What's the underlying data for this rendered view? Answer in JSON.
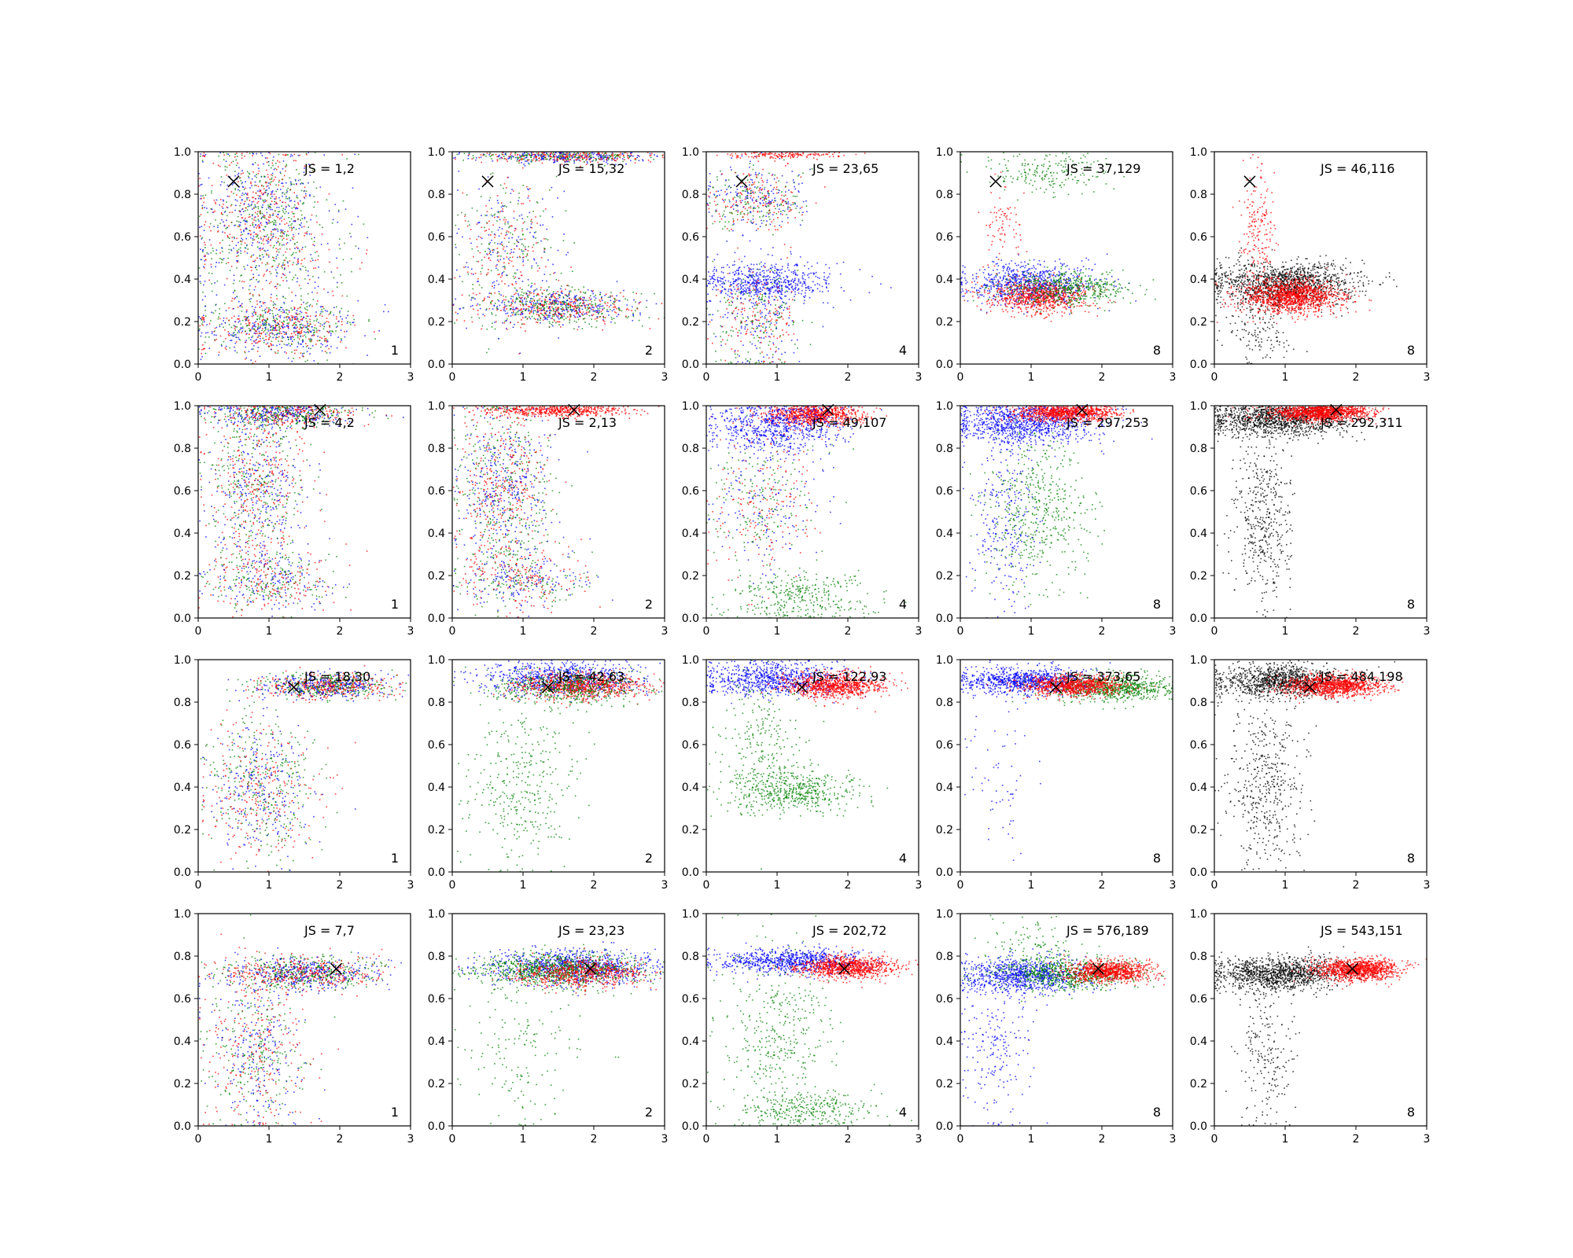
{
  "chart_data": {
    "type": "scatter",
    "layout": {
      "rows": 4,
      "cols": 5
    },
    "xlim": [
      0,
      3
    ],
    "ylim": [
      0,
      1
    ],
    "xticks": [
      "0",
      "1",
      "2",
      "3"
    ],
    "yticks": [
      "0.0",
      "0.2",
      "0.4",
      "0.6",
      "0.8",
      "1.0"
    ],
    "colors": {
      "red": "#ff0000",
      "green": "#008000",
      "blue": "#0000ff",
      "black": "#000000"
    },
    "marker": {
      "symbol": "×",
      "color": "#000000"
    },
    "panels": [
      {
        "js_label": "JS = 1,2",
        "corner_label": "1",
        "marker": [
          0.5,
          0.86
        ],
        "clusters": [
          {
            "color": "mix",
            "cx": 0.9,
            "cy": 0.72,
            "sx": 0.45,
            "sy": 0.16,
            "n": 900
          },
          {
            "color": "mix",
            "cx": 1.1,
            "cy": 0.18,
            "sx": 0.55,
            "sy": 0.06,
            "n": 800
          },
          {
            "color": "mix",
            "cx": 1.0,
            "cy": 0.45,
            "sx": 0.6,
            "sy": 0.2,
            "n": 350
          }
        ]
      },
      {
        "js_label": "JS = 15,32",
        "corner_label": "2",
        "marker": [
          0.5,
          0.86
        ],
        "clusters": [
          {
            "color": "mix",
            "cx": 1.6,
            "cy": 0.98,
            "sx": 0.6,
            "sy": 0.015,
            "n": 600
          },
          {
            "color": "mix",
            "cx": 1.5,
            "cy": 0.27,
            "sx": 0.55,
            "sy": 0.04,
            "n": 900
          },
          {
            "color": "mix",
            "cx": 0.8,
            "cy": 0.55,
            "sx": 0.35,
            "sy": 0.2,
            "n": 500
          }
        ]
      },
      {
        "js_label": "JS = 23,65",
        "corner_label": "4",
        "marker": [
          0.5,
          0.86
        ],
        "clusters": [
          {
            "color": "mix",
            "cx": 0.7,
            "cy": 0.78,
            "sx": 0.35,
            "sy": 0.08,
            "n": 500
          },
          {
            "color": "blue",
            "cx": 0.9,
            "cy": 0.39,
            "sx": 0.45,
            "sy": 0.05,
            "n": 600
          },
          {
            "color": "mix",
            "cx": 0.7,
            "cy": 0.22,
            "sx": 0.3,
            "sy": 0.12,
            "n": 450
          },
          {
            "color": "red",
            "cx": 1.1,
            "cy": 0.99,
            "sx": 0.4,
            "sy": 0.01,
            "n": 150
          }
        ]
      },
      {
        "js_label": "JS = 37,129",
        "corner_label": "8",
        "marker": [
          0.5,
          0.86
        ],
        "clusters": [
          {
            "color": "blue",
            "cx": 1.0,
            "cy": 0.38,
            "sx": 0.45,
            "sy": 0.05,
            "n": 800
          },
          {
            "color": "red",
            "cx": 1.1,
            "cy": 0.32,
            "sx": 0.35,
            "sy": 0.04,
            "n": 800
          },
          {
            "color": "green",
            "cx": 1.5,
            "cy": 0.36,
            "sx": 0.45,
            "sy": 0.04,
            "n": 500
          },
          {
            "color": "green",
            "cx": 1.2,
            "cy": 0.9,
            "sx": 0.45,
            "sy": 0.05,
            "n": 200
          },
          {
            "color": "red",
            "cx": 0.6,
            "cy": 0.65,
            "sx": 0.15,
            "sy": 0.1,
            "n": 80
          }
        ]
      },
      {
        "js_label": "JS = 46,116",
        "corner_label": "8",
        "marker": [
          0.5,
          0.86
        ],
        "clusters": [
          {
            "color": "black",
            "cx": 1.0,
            "cy": 0.38,
            "sx": 0.5,
            "sy": 0.05,
            "n": 1300
          },
          {
            "color": "red",
            "cx": 1.1,
            "cy": 0.32,
            "sx": 0.35,
            "sy": 0.04,
            "n": 1300
          },
          {
            "color": "red",
            "cx": 0.6,
            "cy": 0.65,
            "sx": 0.12,
            "sy": 0.15,
            "n": 200
          },
          {
            "color": "black",
            "cx": 0.6,
            "cy": 0.15,
            "sx": 0.25,
            "sy": 0.1,
            "n": 150
          }
        ]
      },
      {
        "js_label": "JS = 4,2",
        "corner_label": "1",
        "marker": [
          1.72,
          0.98
        ],
        "clusters": [
          {
            "color": "mix",
            "cx": 1.2,
            "cy": 0.96,
            "sx": 0.5,
            "sy": 0.03,
            "n": 700
          },
          {
            "color": "mix",
            "cx": 0.8,
            "cy": 0.65,
            "sx": 0.35,
            "sy": 0.2,
            "n": 900
          },
          {
            "color": "mix",
            "cx": 1.0,
            "cy": 0.18,
            "sx": 0.45,
            "sy": 0.08,
            "n": 500
          }
        ]
      },
      {
        "js_label": "JS = 2,13",
        "corner_label": "2",
        "marker": [
          1.72,
          0.98
        ],
        "clusters": [
          {
            "color": "red",
            "cx": 1.5,
            "cy": 0.98,
            "sx": 0.5,
            "sy": 0.015,
            "n": 500
          },
          {
            "color": "mix",
            "cx": 0.7,
            "cy": 0.6,
            "sx": 0.35,
            "sy": 0.22,
            "n": 1100
          },
          {
            "color": "mix",
            "cx": 1.0,
            "cy": 0.18,
            "sx": 0.45,
            "sy": 0.07,
            "n": 400
          }
        ]
      },
      {
        "js_label": "JS = 49,107",
        "corner_label": "4",
        "marker": [
          1.72,
          0.98
        ],
        "clusters": [
          {
            "color": "red",
            "cx": 1.5,
            "cy": 0.96,
            "sx": 0.35,
            "sy": 0.025,
            "n": 800
          },
          {
            "color": "blue",
            "cx": 1.0,
            "cy": 0.9,
            "sx": 0.45,
            "sy": 0.06,
            "n": 700
          },
          {
            "color": "mix",
            "cx": 0.8,
            "cy": 0.55,
            "sx": 0.4,
            "sy": 0.18,
            "n": 500
          },
          {
            "color": "green",
            "cx": 1.3,
            "cy": 0.1,
            "sx": 0.5,
            "sy": 0.06,
            "n": 350
          }
        ]
      },
      {
        "js_label": "JS = 297,253",
        "corner_label": "8",
        "marker": [
          1.72,
          0.98
        ],
        "clusters": [
          {
            "color": "blue",
            "cx": 0.9,
            "cy": 0.92,
            "sx": 0.5,
            "sy": 0.05,
            "n": 1000
          },
          {
            "color": "red",
            "cx": 1.5,
            "cy": 0.97,
            "sx": 0.35,
            "sy": 0.02,
            "n": 900
          },
          {
            "color": "green",
            "cx": 1.1,
            "cy": 0.5,
            "sx": 0.35,
            "sy": 0.18,
            "n": 500
          },
          {
            "color": "blue",
            "cx": 0.6,
            "cy": 0.45,
            "sx": 0.25,
            "sy": 0.2,
            "n": 250
          }
        ]
      },
      {
        "js_label": "JS = 292,311",
        "corner_label": "8",
        "marker": [
          1.72,
          0.98
        ],
        "clusters": [
          {
            "color": "black",
            "cx": 0.9,
            "cy": 0.94,
            "sx": 0.5,
            "sy": 0.04,
            "n": 1200
          },
          {
            "color": "red",
            "cx": 1.5,
            "cy": 0.97,
            "sx": 0.35,
            "sy": 0.02,
            "n": 1100
          },
          {
            "color": "black",
            "cx": 0.7,
            "cy": 0.45,
            "sx": 0.2,
            "sy": 0.22,
            "n": 450
          }
        ]
      },
      {
        "js_label": "JS = 18,30",
        "corner_label": "1",
        "marker": [
          1.35,
          0.87
        ],
        "clusters": [
          {
            "color": "mix",
            "cx": 1.8,
            "cy": 0.88,
            "sx": 0.45,
            "sy": 0.03,
            "n": 1000
          },
          {
            "color": "mix",
            "cx": 0.9,
            "cy": 0.4,
            "sx": 0.4,
            "sy": 0.17,
            "n": 800
          }
        ]
      },
      {
        "js_label": "JS = 42,63",
        "corner_label": "2",
        "marker": [
          1.35,
          0.87
        ],
        "clusters": [
          {
            "color": "blue",
            "cx": 1.5,
            "cy": 0.91,
            "sx": 0.55,
            "sy": 0.04,
            "n": 800
          },
          {
            "color": "red",
            "cx": 1.8,
            "cy": 0.88,
            "sx": 0.45,
            "sy": 0.03,
            "n": 800
          },
          {
            "color": "green",
            "cx": 1.6,
            "cy": 0.87,
            "sx": 0.55,
            "sy": 0.04,
            "n": 500
          },
          {
            "color": "green",
            "cx": 1.0,
            "cy": 0.4,
            "sx": 0.4,
            "sy": 0.2,
            "n": 350
          }
        ]
      },
      {
        "js_label": "JS = 122,93",
        "corner_label": "4",
        "marker": [
          1.35,
          0.87
        ],
        "clusters": [
          {
            "color": "blue",
            "cx": 1.0,
            "cy": 0.91,
            "sx": 0.5,
            "sy": 0.04,
            "n": 800
          },
          {
            "color": "red",
            "cx": 1.8,
            "cy": 0.88,
            "sx": 0.35,
            "sy": 0.03,
            "n": 900
          },
          {
            "color": "green",
            "cx": 1.2,
            "cy": 0.38,
            "sx": 0.45,
            "sy": 0.05,
            "n": 500
          },
          {
            "color": "green",
            "cx": 0.8,
            "cy": 0.6,
            "sx": 0.3,
            "sy": 0.18,
            "n": 250
          }
        ]
      },
      {
        "js_label": "JS = 373,65",
        "corner_label": "8",
        "marker": [
          1.35,
          0.87
        ],
        "clusters": [
          {
            "color": "blue",
            "cx": 0.9,
            "cy": 0.9,
            "sx": 0.45,
            "sy": 0.03,
            "n": 900
          },
          {
            "color": "green",
            "cx": 2.2,
            "cy": 0.87,
            "sx": 0.5,
            "sy": 0.03,
            "n": 800
          },
          {
            "color": "red",
            "cx": 1.6,
            "cy": 0.88,
            "sx": 0.35,
            "sy": 0.025,
            "n": 900
          },
          {
            "color": "blue",
            "cx": 0.5,
            "cy": 0.45,
            "sx": 0.25,
            "sy": 0.2,
            "n": 60
          }
        ]
      },
      {
        "js_label": "JS = 484,198",
        "corner_label": "8",
        "marker": [
          1.35,
          0.87
        ],
        "clusters": [
          {
            "color": "black",
            "cx": 0.9,
            "cy": 0.9,
            "sx": 0.45,
            "sy": 0.04,
            "n": 1100
          },
          {
            "color": "red",
            "cx": 1.7,
            "cy": 0.88,
            "sx": 0.35,
            "sy": 0.025,
            "n": 1100
          },
          {
            "color": "black",
            "cx": 0.7,
            "cy": 0.4,
            "sx": 0.25,
            "sy": 0.2,
            "n": 450
          }
        ]
      },
      {
        "js_label": "JS = 7,7",
        "corner_label": "1",
        "marker": [
          1.95,
          0.74
        ],
        "clusters": [
          {
            "color": "mix",
            "cx": 1.5,
            "cy": 0.72,
            "sx": 0.55,
            "sy": 0.04,
            "n": 1100
          },
          {
            "color": "mix",
            "cx": 0.8,
            "cy": 0.35,
            "sx": 0.35,
            "sy": 0.2,
            "n": 700
          }
        ]
      },
      {
        "js_label": "JS = 23,23",
        "corner_label": "2",
        "marker": [
          1.95,
          0.74
        ],
        "clusters": [
          {
            "color": "blue",
            "cx": 1.7,
            "cy": 0.75,
            "sx": 0.6,
            "sy": 0.04,
            "n": 900
          },
          {
            "color": "green",
            "cx": 1.5,
            "cy": 0.74,
            "sx": 0.55,
            "sy": 0.04,
            "n": 900
          },
          {
            "color": "red",
            "cx": 1.8,
            "cy": 0.72,
            "sx": 0.45,
            "sy": 0.035,
            "n": 600
          },
          {
            "color": "green",
            "cx": 0.9,
            "cy": 0.35,
            "sx": 0.4,
            "sy": 0.18,
            "n": 150
          }
        ]
      },
      {
        "js_label": "JS = 202,72",
        "corner_label": "4",
        "marker": [
          1.95,
          0.74
        ],
        "clusters": [
          {
            "color": "blue",
            "cx": 1.2,
            "cy": 0.78,
            "sx": 0.5,
            "sy": 0.03,
            "n": 800
          },
          {
            "color": "red",
            "cx": 2.0,
            "cy": 0.75,
            "sx": 0.35,
            "sy": 0.025,
            "n": 900
          },
          {
            "color": "green",
            "cx": 1.0,
            "cy": 0.45,
            "sx": 0.4,
            "sy": 0.2,
            "n": 400
          },
          {
            "color": "green",
            "cx": 1.4,
            "cy": 0.08,
            "sx": 0.5,
            "sy": 0.04,
            "n": 300
          }
        ]
      },
      {
        "js_label": "JS = 576,189",
        "corner_label": "8",
        "marker": [
          1.95,
          0.74
        ],
        "clusters": [
          {
            "color": "blue",
            "cx": 0.9,
            "cy": 0.71,
            "sx": 0.45,
            "sy": 0.04,
            "n": 900
          },
          {
            "color": "green",
            "cx": 1.5,
            "cy": 0.72,
            "sx": 0.5,
            "sy": 0.035,
            "n": 700
          },
          {
            "color": "red",
            "cx": 2.1,
            "cy": 0.73,
            "sx": 0.3,
            "sy": 0.025,
            "n": 900
          },
          {
            "color": "blue",
            "cx": 0.5,
            "cy": 0.35,
            "sx": 0.25,
            "sy": 0.18,
            "n": 200
          },
          {
            "color": "green",
            "cx": 1.0,
            "cy": 0.85,
            "sx": 0.35,
            "sy": 0.08,
            "n": 100
          }
        ]
      },
      {
        "js_label": "JS = 543,151",
        "corner_label": "8",
        "marker": [
          1.95,
          0.74
        ],
        "clusters": [
          {
            "color": "black",
            "cx": 0.9,
            "cy": 0.72,
            "sx": 0.45,
            "sy": 0.04,
            "n": 1200
          },
          {
            "color": "red",
            "cx": 2.0,
            "cy": 0.74,
            "sx": 0.3,
            "sy": 0.025,
            "n": 1100
          },
          {
            "color": "black",
            "cx": 0.7,
            "cy": 0.35,
            "sx": 0.2,
            "sy": 0.18,
            "n": 200
          }
        ]
      }
    ]
  }
}
